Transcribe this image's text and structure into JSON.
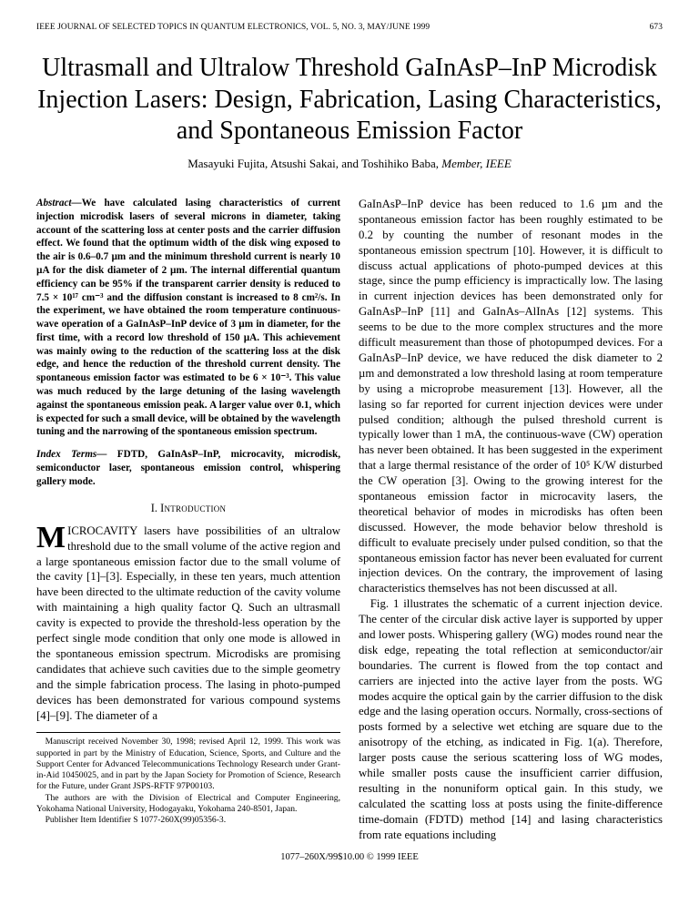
{
  "page": {
    "journal_header": "IEEE JOURNAL OF SELECTED TOPICS IN QUANTUM ELECTRONICS, VOL. 5, NO. 3, MAY/JUNE 1999",
    "page_number": "673",
    "background_color": "#ffffff",
    "text_color": "#000000",
    "font_family": "Times New Roman",
    "base_font_size_pt": 10
  },
  "title": "Ultrasmall and Ultralow Threshold GaInAsP–InP Microdisk Injection Lasers: Design, Fabrication, Lasing Characteristics, and Spontaneous Emission Factor",
  "title_font_size": 28,
  "authors_line_prefix": "Masayuki Fujita, Atsushi Sakai, and Toshihiko Baba,",
  "authors_suffix_italic": " Member, IEEE",
  "abstract": {
    "label": "Abstract—",
    "text": "We have calculated lasing characteristics of current injection microdisk lasers of several microns in diameter, taking account of the scattering loss at center posts and the carrier diffusion effect. We found that the optimum width of the disk wing exposed to the air is 0.6–0.7 µm and the minimum threshold current is nearly 10 µA for the disk diameter of 2 µm. The internal differential quantum efficiency can be 95% if the transparent carrier density is reduced to 7.5 × 10¹⁷ cm⁻³ and the diffusion constant is increased to 8 cm²/s. In the experiment, we have obtained the room temperature continuous-wave operation of a GaInAsP–InP device of 3 µm in diameter, for the first time, with a record low threshold of 150 µA. This achievement was mainly owing to the reduction of the scattering loss at the disk edge, and hence the reduction of the threshold current density. The spontaneous emission factor was estimated to be 6 × 10⁻³. This value was much reduced by the large detuning of the lasing wavelength against the spontaneous emission peak. A larger value over 0.1, which is expected for such a small device, will be obtained by the wavelength tuning and the narrowing of the spontaneous emission spectrum."
  },
  "index_terms": {
    "label": "Index Terms—",
    "text": " FDTD, GaInAsP–InP, microcavity, microdisk, semiconductor laser, spontaneous emission control, whispering gallery mode."
  },
  "section1": {
    "number": "I.",
    "title": "Introduction"
  },
  "body": {
    "col1_dropcap": "M",
    "col1_para1_rest": "ICROCAVITY lasers have possibilities of an ultralow threshold due to the small volume of the active region and a large spontaneous emission factor due to the small volume of the cavity [1]–[3]. Especially, in these ten years, much attention have been directed to the ultimate reduction of the cavity volume with maintaining a high quality factor Q. Such an ultrasmall cavity is expected to provide the threshold-less operation by the perfect single mode condition that only one mode is allowed in the spontaneous emission spectrum. Microdisks are promising candidates that achieve such cavities due to the simple geometry and the simple fabrication process. The lasing in photo-pumped devices has been demonstrated for various compound systems [4]–[9]. The diameter of a",
    "col2_para1": "GaInAsP–InP device has been reduced to 1.6 µm and the spontaneous emission factor has been roughly estimated to be 0.2 by counting the number of resonant modes in the spontaneous emission spectrum [10]. However, it is difficult to discuss actual applications of photo-pumped devices at this stage, since the pump efficiency is impractically low. The lasing in current injection devices has been demonstrated only for GaInAsP–InP [11] and GaInAs–AlInAs [12] systems. This seems to be due to the more complex structures and the more difficult measurement than those of photopumped devices. For a GaInAsP–InP device, we have reduced the disk diameter to 2 µm and demonstrated a low threshold lasing at room temperature by using a microprobe measurement [13]. However, all the lasing so far reported for current injection devices were under pulsed condition; although the pulsed threshold current is typically lower than 1 mA, the continuous-wave (CW) operation has never been obtained. It has been suggested in the experiment that a large thermal resistance of the order of 10⁵ K/W disturbed the CW operation [3]. Owing to the growing interest for the spontaneous emission factor in microcavity lasers, the theoretical behavior of modes in microdisks has often been discussed. However, the mode behavior below threshold is difficult to evaluate precisely under pulsed condition, so that the spontaneous emission factor has never been evaluated for current injection devices. On the contrary, the improvement of lasing characteristics themselves has not been discussed at all.",
    "col2_para2": "Fig. 1 illustrates the schematic of a current injection device. The center of the circular disk active layer is supported by upper and lower posts. Whispering gallery (WG) modes round near the disk edge, repeating the total reflection at semiconductor/air boundaries. The current is flowed from the top contact and carriers are injected into the active layer from the posts. WG modes acquire the optical gain by the carrier diffusion to the disk edge and the lasing operation occurs. Normally, cross-sections of posts formed by a selective wet etching are square due to the anisotropy of the etching, as indicated in Fig. 1(a). Therefore, larger posts cause the serious scattering loss of WG modes, while smaller posts cause the insufficient carrier diffusion, resulting in the nonuniform optical gain. In this study, we calculated the scatting loss at posts using the finite-difference time-domain (FDTD) method [14] and lasing characteristics from rate equations including"
  },
  "footnotes": {
    "f1": "Manuscript received November 30, 1998; revised April 12, 1999. This work was supported in part by the Ministry of Education, Science, Sports, and Culture and the Support Center for Advanced Telecommunications Technology Research under Grant-in-Aid 10450025, and in part by the Japan Society for Promotion of Science, Research for the Future, under Grant JSPS-RFTF 97P00103.",
    "f2": "The authors are with the Division of Electrical and Computer Engineering, Yokohama National University, Hodogayaku, Yokohama 240-8501, Japan.",
    "f3": "Publisher Item Identifier S 1077-260X(99)05356-3."
  },
  "copyright": "1077–260X/99$10.00 © 1999 IEEE"
}
